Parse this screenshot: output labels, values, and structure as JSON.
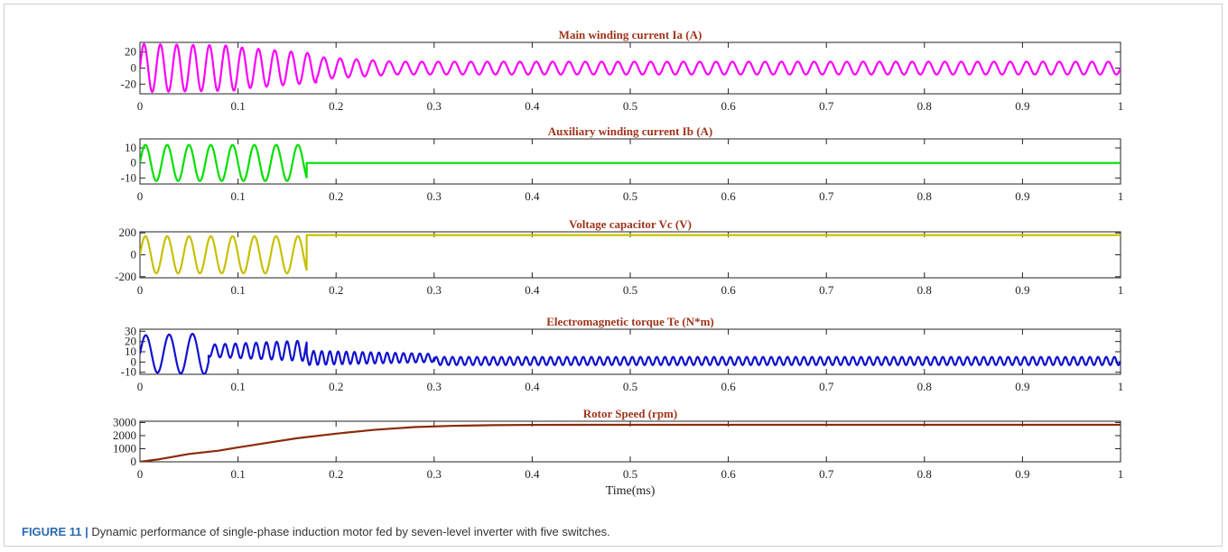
{
  "caption": {
    "label": "FIGURE 11",
    "separator": "|",
    "text": "Dynamic performance of single-phase induction motor fed by seven-level inverter with five switches."
  },
  "chart_data": [
    {
      "type": "line",
      "title": "Main winding current Ia (A)",
      "xlabel": "",
      "ylabel": "",
      "xlim": [
        0,
        1
      ],
      "ylim": [
        -32,
        32
      ],
      "xticks": [
        0,
        0.1,
        0.2,
        0.3,
        0.4,
        0.5,
        0.6,
        0.7,
        0.8,
        0.9,
        1
      ],
      "xtick_labels": [
        "0",
        "0.1",
        "0.2",
        "0.3",
        "0.4",
        "0.5",
        "0.6",
        "0.7",
        "0.8",
        "0.9",
        "1"
      ],
      "yticks": [
        -20,
        0,
        20
      ],
      "ytick_labels": [
        "-20",
        "0",
        "20"
      ],
      "color": "#ff00ff",
      "series": [
        {
          "segments": [
            {
              "t_start": 0,
              "t_end": 0.1,
              "amplitude_start": 30,
              "amplitude_end": 28,
              "frequency_hz": 60
            },
            {
              "t_start": 0.1,
              "t_end": 0.18,
              "amplitude_start": 26,
              "amplitude_end": 18,
              "frequency_hz": 60
            },
            {
              "t_start": 0.18,
              "t_end": 0.26,
              "amplitude_start": 14,
              "amplitude_end": 8,
              "frequency_hz": 60
            },
            {
              "t_start": 0.26,
              "t_end": 1.0,
              "amplitude_start": 8,
              "amplitude_end": 8,
              "frequency_hz": 60
            }
          ]
        }
      ]
    },
    {
      "type": "line",
      "title": "Auxiliary  winding current Ib (A)",
      "xlabel": "",
      "ylabel": "",
      "xlim": [
        0,
        1
      ],
      "ylim": [
        -14,
        16
      ],
      "xticks": [
        0,
        0.1,
        0.2,
        0.3,
        0.4,
        0.5,
        0.6,
        0.7,
        0.8,
        0.9,
        1
      ],
      "xtick_labels": [
        "0",
        "0.1",
        "0.2",
        "0.3",
        "0.4",
        "0.5",
        "0.6",
        "0.7",
        "0.8",
        "0.9",
        "1"
      ],
      "yticks": [
        -10,
        0,
        10
      ],
      "ytick_labels": [
        "-10",
        "0",
        "10"
      ],
      "color": "#00e000",
      "series": [
        {
          "segments": [
            {
              "t_start": 0,
              "t_end": 0.17,
              "amplitude_start": 12,
              "amplitude_end": 12,
              "frequency_hz": 45
            },
            {
              "t_start": 0.17,
              "t_end": 1.0,
              "amplitude_start": 0,
              "amplitude_end": 0,
              "frequency_hz": 0
            }
          ]
        }
      ]
    },
    {
      "type": "line",
      "title": "Voltage capacitor Vc (V)",
      "xlabel": "",
      "ylabel": "",
      "xlim": [
        0,
        1
      ],
      "ylim": [
        -210,
        210
      ],
      "xticks": [
        0,
        0.1,
        0.2,
        0.3,
        0.4,
        0.5,
        0.6,
        0.7,
        0.8,
        0.9,
        1
      ],
      "xtick_labels": [
        "0",
        "0.1",
        "0.2",
        "0.3",
        "0.4",
        "0.5",
        "0.6",
        "0.7",
        "0.8",
        "0.9",
        "1"
      ],
      "yticks": [
        -200,
        0,
        200
      ],
      "ytick_labels": [
        "-200",
        "0",
        "200"
      ],
      "color": "#c8c000",
      "series": [
        {
          "segments": [
            {
              "t_start": 0,
              "t_end": 0.17,
              "amplitude_start": 170,
              "amplitude_end": 170,
              "frequency_hz": 45
            },
            {
              "t_start": 0.17,
              "t_end": 1.0,
              "amplitude_start": 0,
              "amplitude_end": 0,
              "frequency_hz": 0,
              "offset": 180
            }
          ]
        }
      ]
    },
    {
      "type": "line",
      "title": "Electromagnetic torque Te (N*m)",
      "xlabel": "",
      "ylabel": "",
      "xlim": [
        0,
        1
      ],
      "ylim": [
        -12,
        32
      ],
      "xticks": [
        0,
        0.1,
        0.2,
        0.3,
        0.4,
        0.5,
        0.6,
        0.7,
        0.8,
        0.9,
        1
      ],
      "xtick_labels": [
        "0",
        "0.1",
        "0.2",
        "0.3",
        "0.4",
        "0.5",
        "0.6",
        "0.7",
        "0.8",
        "0.9",
        "1"
      ],
      "yticks": [
        -10,
        0,
        10,
        20,
        30
      ],
      "ytick_labels": [
        "-10",
        "0",
        "10",
        "20",
        "30"
      ],
      "color": "#1010d0",
      "series": [
        {
          "segments": [
            {
              "t_start": 0,
              "t_end": 0.07,
              "amplitude_start": 18,
              "amplitude_end": 20,
              "frequency_hz": 42,
              "offset": 8
            },
            {
              "t_start": 0.07,
              "t_end": 0.17,
              "amplitude_start": 6,
              "amplitude_end": 10,
              "frequency_hz": 95,
              "offset": 11
            },
            {
              "t_start": 0.17,
              "t_end": 0.3,
              "amplitude_start": 7,
              "amplitude_end": 4,
              "frequency_hz": 120,
              "offset": 4
            },
            {
              "t_start": 0.3,
              "t_end": 1.0,
              "amplitude_start": 4,
              "amplitude_end": 4,
              "frequency_hz": 120,
              "offset": 1
            }
          ]
        }
      ]
    },
    {
      "type": "line",
      "title": "Rotor Speed (rpm)",
      "xlabel": "Time(ms)",
      "ylabel": "",
      "xlim": [
        0,
        1
      ],
      "ylim": [
        0,
        3100
      ],
      "xticks": [
        0,
        0.1,
        0.2,
        0.3,
        0.4,
        0.5,
        0.6,
        0.7,
        0.8,
        0.9,
        1
      ],
      "xtick_labels": [
        "0",
        "0.1",
        "0.2",
        "0.3",
        "0.4",
        "0.5",
        "0.6",
        "0.7",
        "0.8",
        "0.9",
        "1"
      ],
      "yticks": [
        0,
        1000,
        2000,
        3000
      ],
      "ytick_labels": [
        "0",
        "1000",
        "2000",
        "3000"
      ],
      "color": "#8b2a0a",
      "series": [
        {
          "x": [
            0,
            0.02,
            0.05,
            0.08,
            0.1,
            0.13,
            0.16,
            0.2,
            0.24,
            0.28,
            0.32,
            0.36,
            0.4,
            0.5,
            0.6,
            0.7,
            0.8,
            0.9,
            1.0
          ],
          "y": [
            0,
            200,
            600,
            850,
            1100,
            1450,
            1800,
            2150,
            2450,
            2650,
            2750,
            2800,
            2820,
            2830,
            2830,
            2830,
            2830,
            2830,
            2830
          ]
        }
      ]
    }
  ]
}
